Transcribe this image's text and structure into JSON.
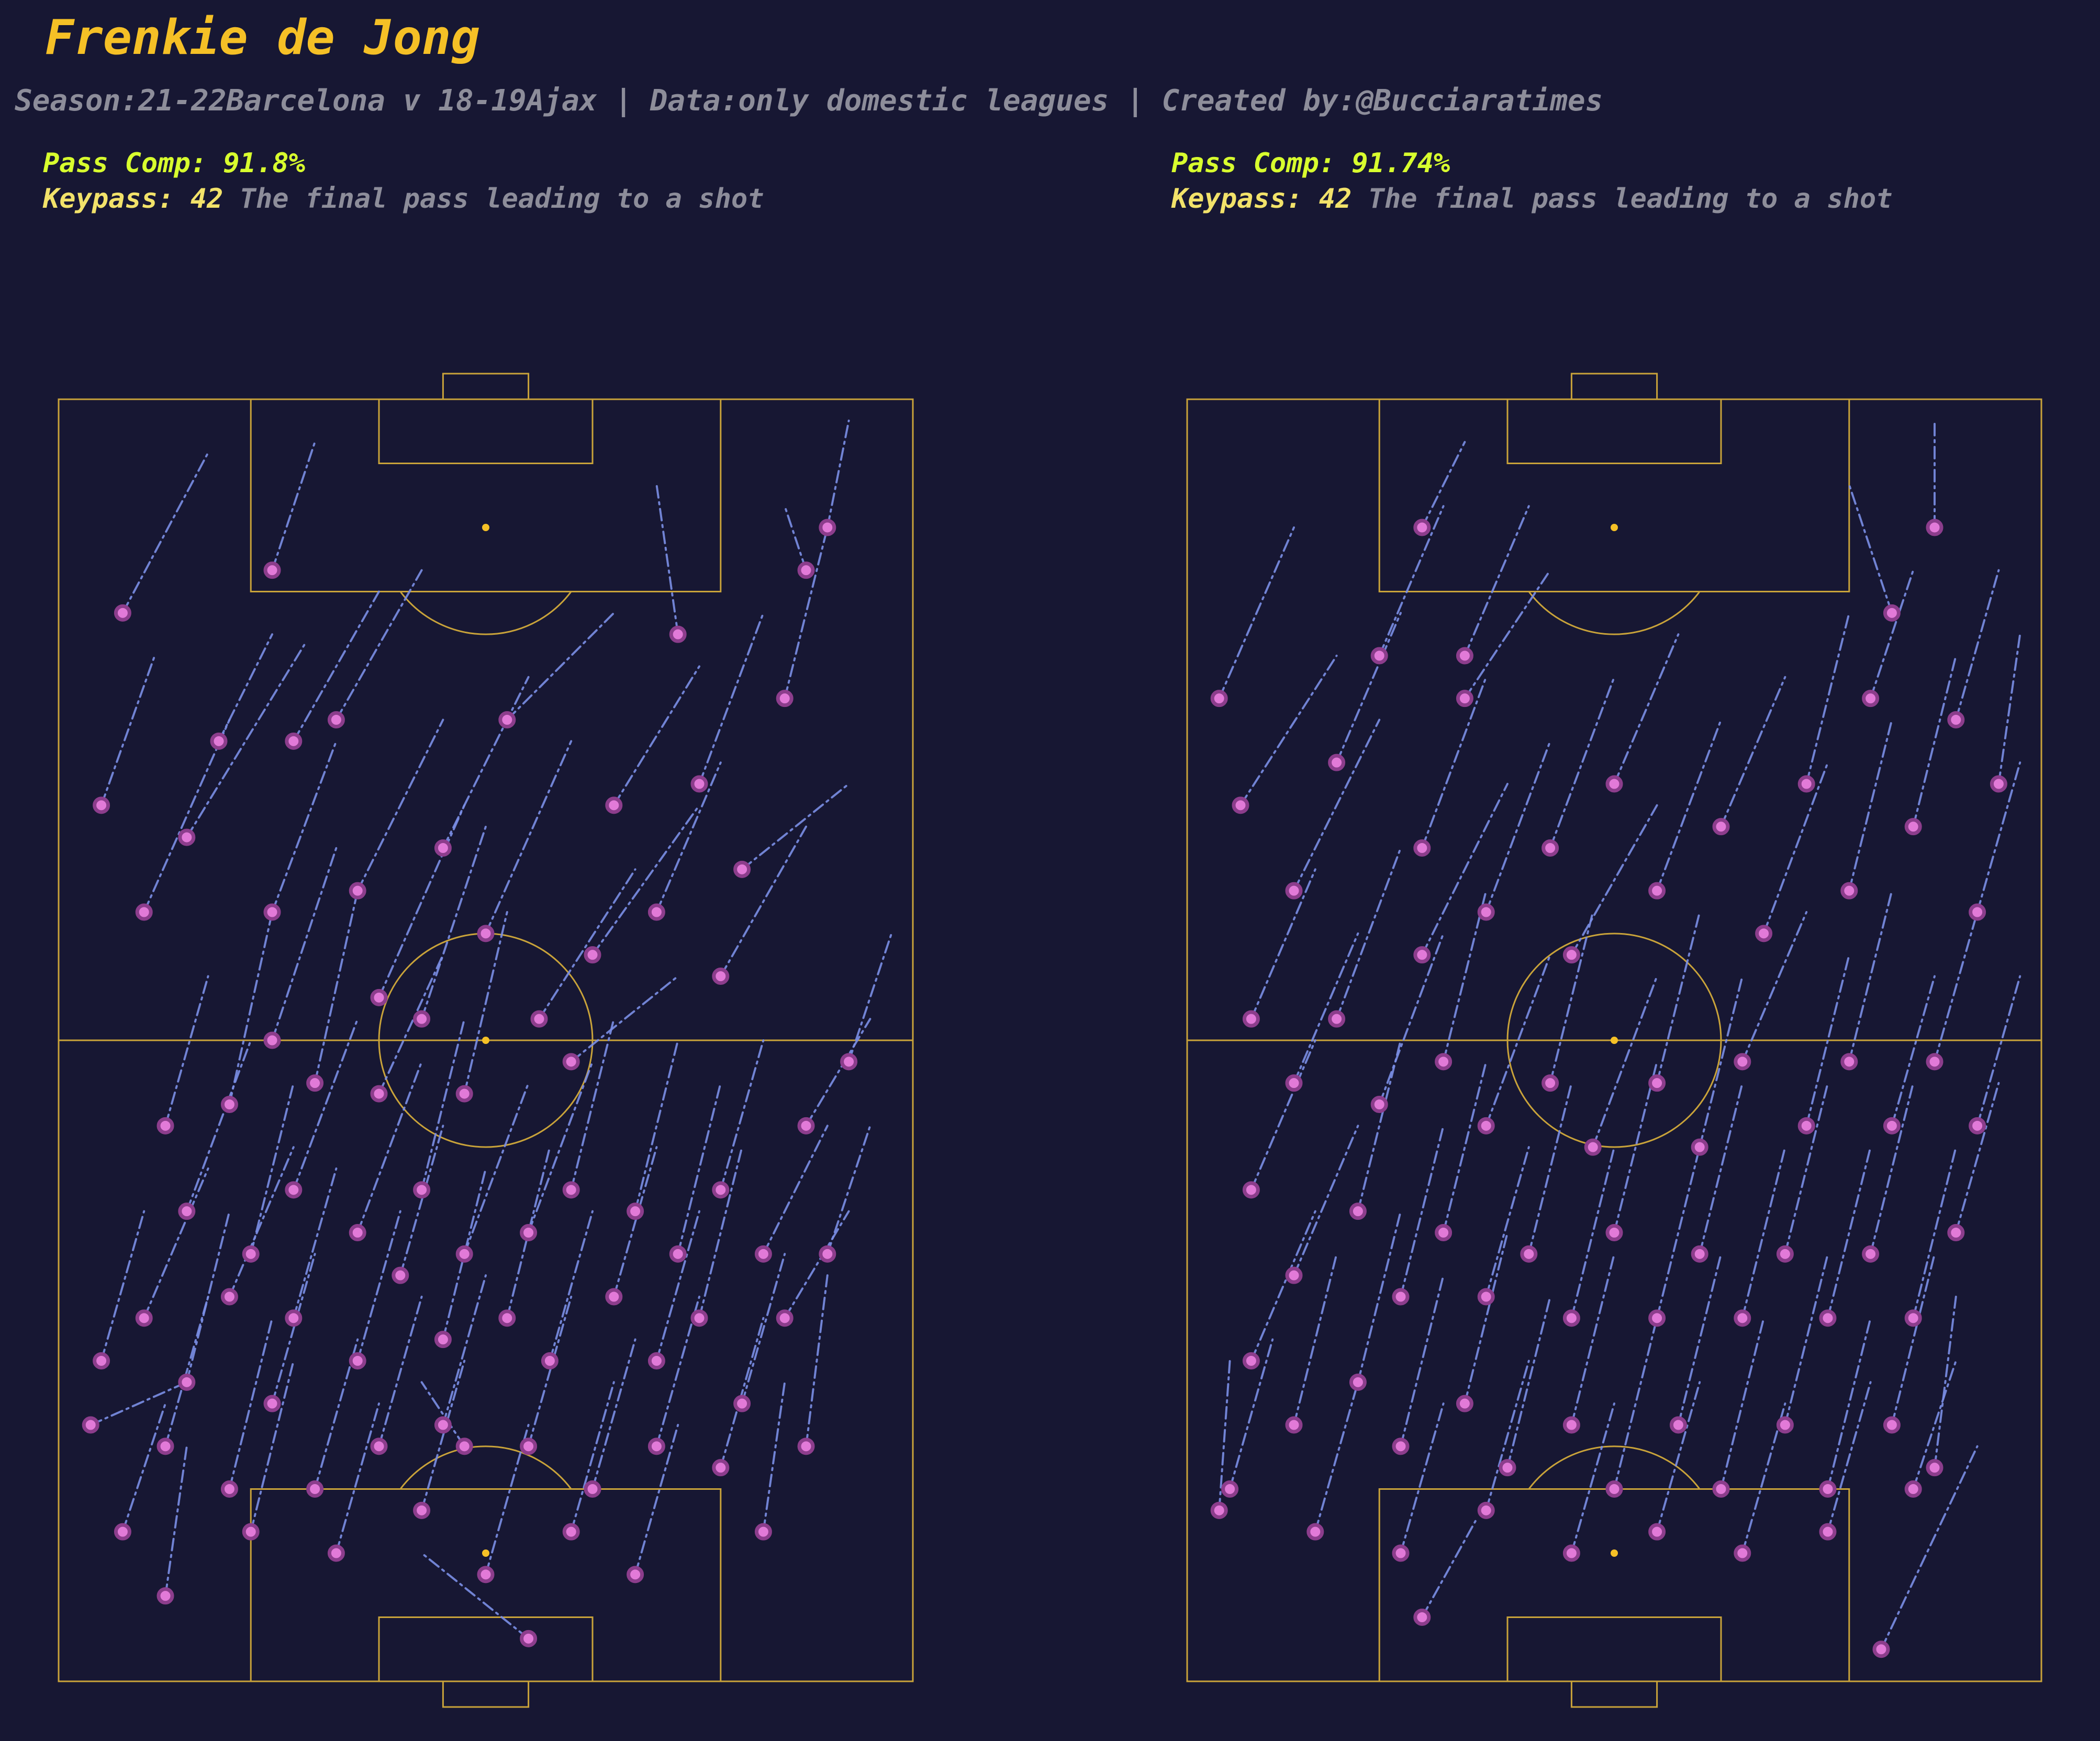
{
  "title": "Frenkie de Jong",
  "subtitle": "Season:21-22Barcelona v 18-19Ajax | Data:only domestic leagues | Created by:@Bucciaratimes",
  "colors": {
    "background": "#171733",
    "pitch_lines": "#c9a33a",
    "pass_lines": "#7b8fe6",
    "pass_end_fill": "#e27ad8",
    "pass_end_edge": "#8c3d8c",
    "title": "#f5c026",
    "pass_comp": "#d8ff2e",
    "keypass": "#f2e26a",
    "muted_text": "#8d8d9a"
  },
  "panels": [
    {
      "pass_comp_label": "Pass Comp: 91.8%",
      "keypass_label": "Keypass: 42",
      "keypass_desc": "The final pass leading to a shot"
    },
    {
      "pass_comp_label": "Pass Comp: 91.74%",
      "keypass_label": "Keypass: 42",
      "keypass_desc": "The final pass leading to a shot"
    }
  ],
  "chart_data": [
    {
      "type": "scatter",
      "pitch": "vertical, 120x80 units, attacking upward",
      "line_style": "dash-dot",
      "passes": [
        [
          6,
          100,
          14,
          115
        ],
        [
          4,
          82,
          9,
          96
        ],
        [
          8,
          72,
          16,
          90
        ],
        [
          12,
          79,
          23,
          97
        ],
        [
          15,
          88,
          20,
          98
        ],
        [
          20,
          104,
          24,
          116
        ],
        [
          22,
          88,
          30,
          102
        ],
        [
          20,
          72,
          26,
          88
        ],
        [
          26,
          90,
          34,
          104
        ],
        [
          28,
          74,
          36,
          90
        ],
        [
          30,
          64,
          38,
          82
        ],
        [
          36,
          78,
          44,
          94
        ],
        [
          40,
          70,
          48,
          88
        ],
        [
          42,
          90,
          52,
          100
        ],
        [
          34,
          62,
          40,
          80
        ],
        [
          45,
          62,
          54,
          76
        ],
        [
          50,
          68,
          60,
          82
        ],
        [
          52,
          82,
          60,
          95
        ],
        [
          56,
          72,
          62,
          86
        ],
        [
          60,
          84,
          66,
          100
        ],
        [
          62,
          66,
          70,
          80
        ],
        [
          64,
          76,
          74,
          84
        ],
        [
          68,
          92,
          72,
          108
        ],
        [
          72,
          108,
          74,
          118
        ],
        [
          70,
          104,
          68,
          110
        ],
        [
          58,
          98,
          56,
          112
        ],
        [
          48,
          58,
          58,
          66
        ],
        [
          38,
          55,
          42,
          72
        ],
        [
          30,
          55,
          36,
          68
        ],
        [
          24,
          56,
          28,
          74
        ],
        [
          20,
          60,
          26,
          78
        ],
        [
          16,
          54,
          20,
          72
        ],
        [
          10,
          52,
          14,
          66
        ],
        [
          12,
          44,
          18,
          60
        ],
        [
          18,
          40,
          22,
          56
        ],
        [
          22,
          46,
          28,
          62
        ],
        [
          28,
          42,
          34,
          58
        ],
        [
          34,
          46,
          38,
          62
        ],
        [
          38,
          40,
          44,
          56
        ],
        [
          44,
          42,
          50,
          58
        ],
        [
          48,
          46,
          52,
          62
        ],
        [
          54,
          44,
          58,
          60
        ],
        [
          58,
          40,
          62,
          56
        ],
        [
          62,
          46,
          66,
          60
        ],
        [
          66,
          40,
          72,
          52
        ],
        [
          70,
          52,
          76,
          62
        ],
        [
          74,
          58,
          78,
          70
        ],
        [
          8,
          34,
          14,
          48
        ],
        [
          12,
          28,
          16,
          44
        ],
        [
          16,
          36,
          22,
          50
        ],
        [
          22,
          34,
          26,
          48
        ],
        [
          28,
          30,
          32,
          44
        ],
        [
          32,
          38,
          36,
          52
        ],
        [
          36,
          32,
          40,
          48
        ],
        [
          42,
          34,
          46,
          50
        ],
        [
          46,
          30,
          50,
          44
        ],
        [
          52,
          36,
          56,
          50
        ],
        [
          56,
          30,
          60,
          44
        ],
        [
          60,
          34,
          64,
          50
        ],
        [
          64,
          26,
          68,
          40
        ],
        [
          68,
          34,
          74,
          44
        ],
        [
          72,
          40,
          76,
          52
        ],
        [
          10,
          22,
          14,
          36
        ],
        [
          16,
          18,
          20,
          34
        ],
        [
          20,
          26,
          24,
          40
        ],
        [
          24,
          18,
          28,
          32
        ],
        [
          30,
          22,
          34,
          36
        ],
        [
          36,
          24,
          40,
          38
        ],
        [
          44,
          22,
          48,
          36
        ],
        [
          50,
          18,
          54,
          32
        ],
        [
          56,
          22,
          60,
          36
        ],
        [
          62,
          20,
          66,
          34
        ],
        [
          70,
          22,
          72,
          38
        ],
        [
          4,
          30,
          8,
          44
        ],
        [
          6,
          14,
          10,
          26
        ],
        [
          10,
          8,
          12,
          22
        ],
        [
          18,
          14,
          22,
          30
        ],
        [
          26,
          12,
          30,
          26
        ],
        [
          34,
          16,
          38,
          30
        ],
        [
          40,
          10,
          44,
          24
        ],
        [
          48,
          14,
          52,
          28
        ],
        [
          54,
          10,
          58,
          24
        ],
        [
          66,
          14,
          68,
          28
        ],
        [
          3,
          24,
          12,
          28
        ],
        [
          38,
          22,
          34,
          28
        ],
        [
          44,
          4,
          34,
          12
        ]
      ]
    },
    {
      "type": "scatter",
      "pitch": "vertical, 120x80 units, attacking upward",
      "line_style": "dash-dot",
      "passes": [
        [
          3,
          92,
          10,
          108
        ],
        [
          5,
          82,
          14,
          96
        ],
        [
          10,
          74,
          18,
          90
        ],
        [
          14,
          86,
          20,
          100
        ],
        [
          18,
          96,
          24,
          110
        ],
        [
          22,
          78,
          28,
          94
        ],
        [
          26,
          92,
          34,
          104
        ],
        [
          22,
          68,
          30,
          84
        ],
        [
          28,
          72,
          34,
          88
        ],
        [
          34,
          78,
          40,
          94
        ],
        [
          36,
          68,
          44,
          82
        ],
        [
          40,
          84,
          46,
          98
        ],
        [
          44,
          74,
          50,
          90
        ],
        [
          50,
          80,
          56,
          94
        ],
        [
          54,
          70,
          60,
          86
        ],
        [
          58,
          84,
          62,
          100
        ],
        [
          62,
          74,
          66,
          90
        ],
        [
          64,
          92,
          68,
          104
        ],
        [
          68,
          80,
          72,
          96
        ],
        [
          72,
          90,
          76,
          104
        ],
        [
          74,
          72,
          78,
          86
        ],
        [
          76,
          84,
          78,
          98
        ],
        [
          66,
          100,
          62,
          112
        ],
        [
          70,
          108,
          70,
          118
        ],
        [
          22,
          108,
          26,
          116
        ],
        [
          26,
          96,
          32,
          110
        ],
        [
          6,
          62,
          12,
          76
        ],
        [
          10,
          56,
          16,
          70
        ],
        [
          14,
          62,
          20,
          78
        ],
        [
          18,
          54,
          24,
          70
        ],
        [
          24,
          58,
          28,
          74
        ],
        [
          28,
          52,
          34,
          68
        ],
        [
          34,
          56,
          38,
          72
        ],
        [
          38,
          50,
          44,
          66
        ],
        [
          44,
          56,
          48,
          72
        ],
        [
          48,
          50,
          52,
          66
        ],
        [
          52,
          58,
          58,
          72
        ],
        [
          58,
          52,
          62,
          68
        ],
        [
          62,
          58,
          66,
          74
        ],
        [
          66,
          52,
          70,
          66
        ],
        [
          70,
          58,
          74,
          72
        ],
        [
          74,
          52,
          78,
          66
        ],
        [
          6,
          46,
          12,
          60
        ],
        [
          10,
          38,
          16,
          52
        ],
        [
          16,
          44,
          20,
          60
        ],
        [
          20,
          36,
          24,
          52
        ],
        [
          24,
          42,
          28,
          58
        ],
        [
          28,
          36,
          32,
          50
        ],
        [
          32,
          40,
          36,
          56
        ],
        [
          36,
          34,
          40,
          50
        ],
        [
          40,
          42,
          44,
          58
        ],
        [
          44,
          34,
          48,
          50
        ],
        [
          48,
          40,
          52,
          56
        ],
        [
          52,
          34,
          56,
          50
        ],
        [
          56,
          40,
          60,
          56
        ],
        [
          60,
          34,
          64,
          50
        ],
        [
          64,
          40,
          68,
          56
        ],
        [
          68,
          34,
          72,
          50
        ],
        [
          72,
          42,
          76,
          56
        ],
        [
          6,
          30,
          12,
          44
        ],
        [
          10,
          24,
          14,
          40
        ],
        [
          16,
          28,
          20,
          44
        ],
        [
          20,
          22,
          24,
          38
        ],
        [
          26,
          26,
          30,
          42
        ],
        [
          30,
          20,
          34,
          36
        ],
        [
          36,
          24,
          40,
          40
        ],
        [
          40,
          18,
          44,
          34
        ],
        [
          46,
          24,
          50,
          40
        ],
        [
          50,
          18,
          54,
          34
        ],
        [
          56,
          24,
          60,
          40
        ],
        [
          60,
          18,
          64,
          34
        ],
        [
          66,
          24,
          70,
          40
        ],
        [
          70,
          20,
          72,
          36
        ],
        [
          4,
          18,
          8,
          32
        ],
        [
          12,
          14,
          16,
          28
        ],
        [
          20,
          12,
          24,
          26
        ],
        [
          28,
          16,
          32,
          30
        ],
        [
          36,
          12,
          40,
          26
        ],
        [
          44,
          14,
          48,
          28
        ],
        [
          52,
          12,
          56,
          26
        ],
        [
          60,
          14,
          64,
          28
        ],
        [
          68,
          18,
          72,
          30
        ],
        [
          3,
          16,
          4,
          30
        ],
        [
          22,
          6,
          27,
          15
        ],
        [
          65,
          3,
          74,
          22
        ]
      ]
    }
  ]
}
